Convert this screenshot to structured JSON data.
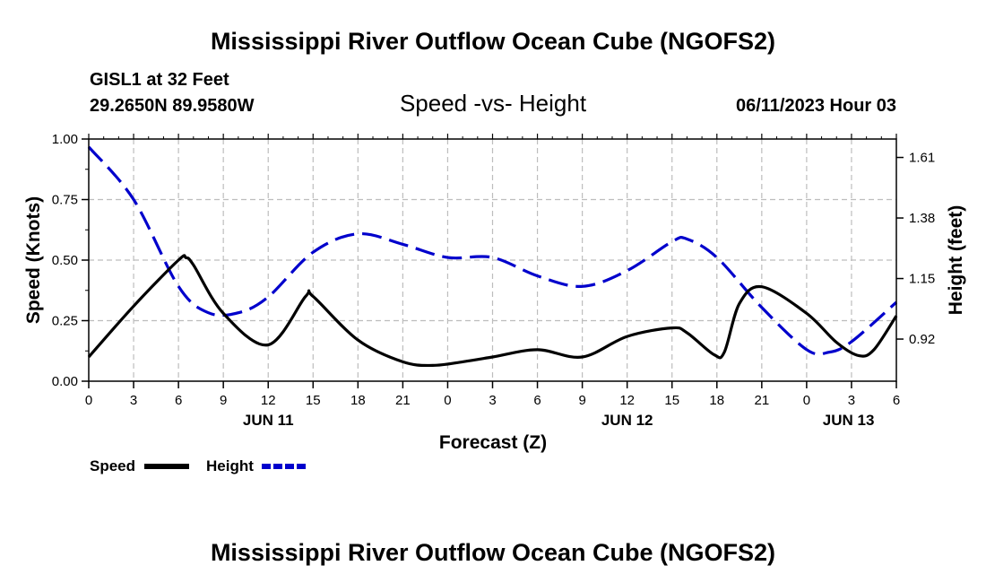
{
  "title": "Mississippi River Outflow Ocean Cube (NGOFS2)",
  "footer_title": "Mississippi River Outflow Ocean Cube (NGOFS2)",
  "station": "GISL1 at 32 Feet",
  "coords": "29.2650N  89.9580W",
  "datetime": "06/11/2023 Hour 03",
  "chart_data": {
    "type": "line",
    "title": "Speed -vs- Height",
    "xlabel": "Forecast (Z)",
    "ylabel": "Speed (Knots)",
    "y2label": "Height (feet)",
    "x_unit": "hours from 00Z Jun 11",
    "xlim": [
      0,
      54
    ],
    "ylim": [
      0,
      1.0
    ],
    "y2lim": [
      0.76,
      1.68
    ],
    "grid": true,
    "x_ticks": [
      {
        "x": 0,
        "label": "0"
      },
      {
        "x": 3,
        "label": "3"
      },
      {
        "x": 6,
        "label": "6"
      },
      {
        "x": 9,
        "label": "9"
      },
      {
        "x": 12,
        "label": "12"
      },
      {
        "x": 15,
        "label": "15"
      },
      {
        "x": 18,
        "label": "18"
      },
      {
        "x": 21,
        "label": "21"
      },
      {
        "x": 24,
        "label": "0"
      },
      {
        "x": 27,
        "label": "3"
      },
      {
        "x": 30,
        "label": "6"
      },
      {
        "x": 33,
        "label": "9"
      },
      {
        "x": 36,
        "label": "12"
      },
      {
        "x": 39,
        "label": "15"
      },
      {
        "x": 42,
        "label": "18"
      },
      {
        "x": 45,
        "label": "21"
      },
      {
        "x": 48,
        "label": "0"
      },
      {
        "x": 51,
        "label": "3"
      },
      {
        "x": 54,
        "label": "6"
      }
    ],
    "date_labels": [
      {
        "x": 12,
        "label": "JUN 11"
      },
      {
        "x": 36,
        "label": "JUN 12"
      },
      {
        "x": 50.8,
        "label": "JUN 13"
      }
    ],
    "y_ticks": [
      {
        "y": 0.0,
        "label": "0.00"
      },
      {
        "y": 0.25,
        "label": "0.25"
      },
      {
        "y": 0.5,
        "label": "0.50"
      },
      {
        "y": 0.75,
        "label": "0.75"
      },
      {
        "y": 1.0,
        "label": "1.00"
      }
    ],
    "y2_ticks": [
      {
        "y": 0.92,
        "label": "0.92"
      },
      {
        "y": 1.15,
        "label": "1.15"
      },
      {
        "y": 1.38,
        "label": "1.38"
      },
      {
        "y": 1.61,
        "label": "1.61"
      }
    ],
    "series": [
      {
        "name": "Speed",
        "axis": "left",
        "color": "#000000",
        "dash": "solid",
        "x": [
          0,
          3,
          6,
          6.5,
          7,
          9,
          12,
          14.5,
          15,
          18,
          21,
          23,
          25,
          27,
          30,
          33,
          36,
          39,
          40,
          41.8,
          42.5,
          43.5,
          45,
          48,
          50,
          51.5,
          52.5,
          54
        ],
        "values": [
          0.1,
          0.31,
          0.5,
          0.51,
          0.48,
          0.28,
          0.15,
          0.35,
          0.35,
          0.17,
          0.08,
          0.065,
          0.08,
          0.1,
          0.13,
          0.1,
          0.185,
          0.22,
          0.2,
          0.11,
          0.12,
          0.32,
          0.39,
          0.28,
          0.16,
          0.105,
          0.13,
          0.27
        ]
      },
      {
        "name": "Height",
        "axis": "right",
        "color": "#0000cc",
        "dash": "dashed",
        "x": [
          0,
          3,
          6,
          8,
          10,
          12,
          15,
          18,
          21,
          24,
          27,
          30,
          33,
          36,
          39,
          40,
          42,
          45,
          48,
          49.5,
          51,
          54
        ],
        "values": [
          1.65,
          1.45,
          1.12,
          1.02,
          1.02,
          1.08,
          1.25,
          1.32,
          1.28,
          1.23,
          1.23,
          1.16,
          1.12,
          1.18,
          1.29,
          1.3,
          1.23,
          1.04,
          0.88,
          0.87,
          0.91,
          1.06
        ]
      }
    ],
    "legend": [
      {
        "label": "Speed",
        "color": "#000000",
        "dash": "solid"
      },
      {
        "label": "Height",
        "color": "#0000cc",
        "dash": "dashed"
      }
    ],
    "legend_position": "bottom-left"
  }
}
